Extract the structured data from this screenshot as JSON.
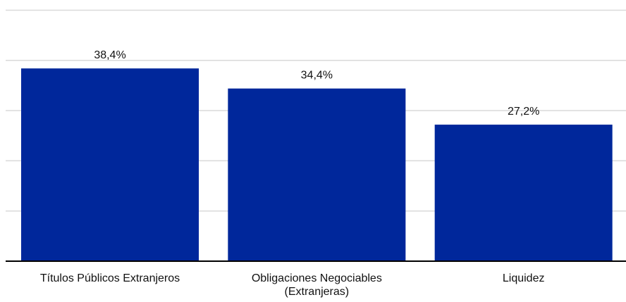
{
  "chart_data": {
    "type": "bar",
    "categories": [
      [
        "Títulos Públicos Extranjeros"
      ],
      [
        "Obligaciones Negociables",
        "(Extranjeras)"
      ],
      [
        "Liquidez"
      ]
    ],
    "values": [
      38.4,
      34.4,
      27.2
    ],
    "value_labels": [
      "38,4%",
      "34,4%",
      "27,2%"
    ],
    "ylim": [
      0,
      50
    ],
    "gridlines": [
      10,
      20,
      30,
      40,
      50
    ],
    "grid": true,
    "legend": "none",
    "title": "",
    "xlabel": "",
    "ylabel": ""
  },
  "colors": {
    "bar": "#00279b",
    "grid": "#d9d9d9",
    "axis": "#000000",
    "text": "#111111"
  }
}
